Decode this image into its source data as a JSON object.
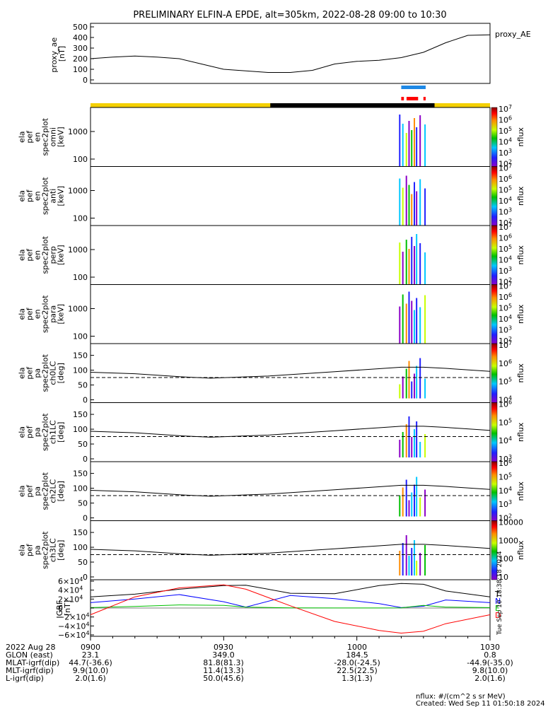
{
  "title": "PRELIMINARY ELFIN-A EPDE, alt=305km, 2022-08-28 09:00 to 10:30",
  "proxy_ae_panel": {
    "ylabel": [
      "proxy_ae",
      "[nT]"
    ],
    "legend": "proxy_AE",
    "yticks": [
      "500",
      "400",
      "300",
      "200",
      "100",
      "0"
    ]
  },
  "spec_panels": [
    {
      "id": "omni",
      "ylabel": [
        "ela",
        "pef",
        "en",
        "spec2plot",
        "omni",
        "[keV]"
      ],
      "yticks": [
        "1000",
        "100"
      ],
      "cbar_ticks": [
        "10^7",
        "10^6",
        "10^5",
        "10^4",
        "10^3",
        "10^2"
      ],
      "cbar_label": "nflux"
    },
    {
      "id": "anti",
      "ylabel": [
        "ela",
        "pef",
        "en",
        "spec2plot",
        "anti",
        "[keV]"
      ],
      "yticks": [
        "1000",
        "100"
      ],
      "cbar_ticks": [
        "10^7",
        "10^6",
        "10^5",
        "10^4",
        "10^3",
        "10^2"
      ],
      "cbar_label": "nflux"
    },
    {
      "id": "perp",
      "ylabel": [
        "ela",
        "pef",
        "en",
        "spec2plot",
        "perp",
        "[keV]"
      ],
      "yticks": [
        "1000",
        "100"
      ],
      "cbar_ticks": [
        "10^7",
        "10^6",
        "10^5",
        "10^4",
        "10^3",
        "10^2"
      ],
      "cbar_label": "nflux"
    },
    {
      "id": "para",
      "ylabel": [
        "ela",
        "pef",
        "en",
        "spec2plot",
        "para",
        "[keV]"
      ],
      "yticks": [
        "1000",
        "100"
      ],
      "cbar_ticks": [
        "10^7",
        "10^6",
        "10^5",
        "10^4",
        "10^3",
        "10^2"
      ],
      "cbar_label": "nflux"
    }
  ],
  "pa_panels": [
    {
      "id": "ch0LC",
      "ylabel": [
        "ela",
        "pef",
        "pa",
        "spec2plot",
        "ch0LC",
        "[deg]"
      ],
      "yticks": [
        "150",
        "100",
        "50",
        "0"
      ],
      "cbar_ticks": [
        "10^7",
        "10^6",
        "10^5",
        "10^4"
      ],
      "cbar_label": "nflux"
    },
    {
      "id": "ch1LC",
      "ylabel": [
        "ela",
        "pef",
        "pa",
        "spec2plot",
        "ch1LC",
        "[deg]"
      ],
      "yticks": [
        "150",
        "100",
        "50",
        "0"
      ],
      "cbar_ticks": [
        "10^6",
        "10^5",
        "10^4",
        "10^3"
      ],
      "cbar_label": "nflux"
    },
    {
      "id": "ch2LC",
      "ylabel": [
        "ela",
        "pef",
        "pa",
        "spec2plot",
        "ch2LC",
        "[deg]"
      ],
      "yticks": [
        "150",
        "100",
        "50",
        "0"
      ],
      "cbar_ticks": [
        "10^6",
        "10^5",
        "10^4",
        "10^3",
        "10^2"
      ],
      "cbar_label": "nflux"
    },
    {
      "id": "ch3LC",
      "ylabel": [
        "ela",
        "pef",
        "pa",
        "spec2plot",
        "ch3LC",
        "[deg]"
      ],
      "yticks": [
        "150",
        "100",
        "50",
        "0"
      ],
      "cbar_ticks": [
        "10000",
        "1000",
        "100",
        "10"
      ],
      "cbar_label": "nflux"
    }
  ],
  "igrf_panel": {
    "ylabel": [
      "IGRF",
      "[nT]"
    ],
    "yticks": [
      "6×10^4",
      "4×10^4",
      "2×10^4",
      "0",
      "−2×10^4",
      "−4×10^4",
      "−6×10^4"
    ],
    "legend": [
      {
        "label": "T",
        "color": "#000000"
      },
      {
        "label": "N",
        "color": "#0000ff"
      },
      {
        "label": "E",
        "color": "#00c000"
      },
      {
        "label": "D",
        "color": "#ff0000"
      }
    ],
    "side_note": "Tue Sep 10 18:38:18 2024"
  },
  "time_axis": {
    "date_label": "2022 Aug 28",
    "ticks": [
      "0900",
      "0930",
      "1000",
      "1030"
    ]
  },
  "ephemeris_rows": [
    {
      "label": "GLON (east)",
      "values": [
        "23.1",
        "349.0",
        "184.5",
        "0.8"
      ]
    },
    {
      "label": "MLAT-igrf(dip)",
      "values": [
        "44.7(-36.6)",
        "81.8(81.3)",
        "-28.0(-24.5)",
        "-44.9(-35.0)"
      ]
    },
    {
      "label": "MLT-igrf(dip)",
      "values": [
        "9.9(10.0)",
        "11.4(13.3)",
        "22.5(22.5)",
        "9.8(10.0)"
      ]
    },
    {
      "label": "L-igrf(dip)",
      "values": [
        "2.0(1.6)",
        "50.0(45.6)",
        "1.3(1.3)",
        "2.0(1.6)"
      ]
    }
  ],
  "footer": {
    "units": "nflux: #/(cm^2 s sr MeV)",
    "created": "Created: Wed Sep 11 01:50:18 2024"
  },
  "colors": {
    "eclipse_sunlit": "#f4d000",
    "eclipse_shadow": "#000000",
    "science_zone_bar": "#1e88e5",
    "burst_marks": "#ff0000"
  },
  "chart_data": {
    "type": "line",
    "x_range": [
      "09:00",
      "10:30"
    ],
    "proxy_ae": {
      "ylim": [
        0,
        500
      ],
      "x_minutes": [
        0,
        5,
        10,
        15,
        20,
        25,
        30,
        35,
        40,
        45,
        50,
        55,
        60,
        65,
        70,
        75,
        80,
        85,
        90
      ],
      "values": [
        200,
        215,
        225,
        215,
        200,
        150,
        100,
        85,
        70,
        70,
        90,
        150,
        175,
        185,
        210,
        260,
        350,
        420,
        425
      ]
    },
    "science_zone_minutes": [
      70.0,
      75.5
    ],
    "burst_minutes": [
      [
        70.0,
        70.6
      ],
      [
        71.2,
        73.8
      ],
      [
        75.0,
        75.5
      ]
    ],
    "eclipse_minutes": [
      40.5,
      77.5
    ],
    "spectrogram_burst_minutes": [
      69.5,
      70.2,
      71.0,
      71.6,
      72.2,
      72.8,
      73.3,
      74.1,
      75.2
    ],
    "loss_cone_deg": {
      "x_minutes": [
        0,
        10,
        20,
        27,
        40,
        55,
        65,
        70,
        75,
        80,
        90
      ],
      "values": [
        93,
        88,
        78,
        73,
        80,
        95,
        105,
        110,
        110,
        106,
        96
      ]
    },
    "anti_loss_cone_deg": 75,
    "igrf": {
      "ylim": [
        -60000,
        60000
      ],
      "x_minutes": [
        0,
        10,
        20,
        30,
        35,
        45,
        55,
        65,
        70,
        75,
        80,
        90
      ],
      "T": [
        25000,
        31000,
        42000,
        50000,
        51000,
        33000,
        32000,
        50000,
        55000,
        53000,
        38000,
        25000
      ],
      "N": [
        12000,
        20000,
        30000,
        14000,
        2000,
        28000,
        21000,
        10000,
        1000,
        4000,
        18000,
        12000
      ],
      "E": [
        1000,
        3500,
        7000,
        6000,
        2000,
        500,
        200,
        200,
        500,
        6000,
        2000,
        1000
      ],
      "D": [
        -15000,
        25000,
        45000,
        52000,
        42000,
        5000,
        -30000,
        -50000,
        -56000,
        -52000,
        -35000,
        -15000
      ]
    }
  }
}
